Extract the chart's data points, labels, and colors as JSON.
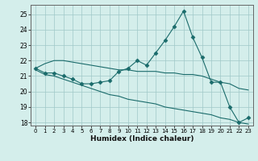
{
  "xlabel": "Humidex (Indice chaleur)",
  "background_color": "#d4eeeb",
  "grid_color": "#a0c8c8",
  "line_color": "#1a6b6b",
  "xlim": [
    -0.5,
    23.5
  ],
  "ylim": [
    17.8,
    25.6
  ],
  "yticks": [
    18,
    19,
    20,
    21,
    22,
    23,
    24,
    25
  ],
  "xticks": [
    0,
    1,
    2,
    3,
    4,
    5,
    6,
    7,
    8,
    9,
    10,
    11,
    12,
    13,
    14,
    15,
    16,
    17,
    18,
    19,
    20,
    21,
    22,
    23
  ],
  "series": [
    {
      "x": [
        0,
        1,
        2,
        3,
        4,
        5,
        6,
        7,
        8,
        9,
        10,
        11,
        12,
        13,
        14,
        15,
        16,
        17,
        18,
        19,
        20,
        21,
        22,
        23
      ],
      "y": [
        21.5,
        21.2,
        21.2,
        21.0,
        20.8,
        20.5,
        20.5,
        20.6,
        20.7,
        21.3,
        21.5,
        22.0,
        21.7,
        22.5,
        23.3,
        24.2,
        25.2,
        23.5,
        22.2,
        20.6,
        20.6,
        19.0,
        18.0,
        18.3
      ],
      "marker": "D",
      "markersize": 2.5
    },
    {
      "x": [
        0,
        1,
        2,
        3,
        4,
        5,
        6,
        7,
        8,
        9,
        10,
        11,
        12,
        13,
        14,
        15,
        16,
        17,
        18,
        19,
        20,
        21,
        22,
        23
      ],
      "y": [
        21.5,
        21.8,
        22.0,
        22.0,
        21.9,
        21.8,
        21.7,
        21.6,
        21.5,
        21.4,
        21.4,
        21.3,
        21.3,
        21.3,
        21.2,
        21.2,
        21.1,
        21.1,
        21.0,
        20.8,
        20.6,
        20.5,
        20.2,
        20.1
      ],
      "marker": null,
      "markersize": 0
    },
    {
      "x": [
        0,
        1,
        2,
        3,
        4,
        5,
        6,
        7,
        8,
        9,
        10,
        11,
        12,
        13,
        14,
        15,
        16,
        17,
        18,
        19,
        20,
        21,
        22,
        23
      ],
      "y": [
        21.4,
        21.1,
        21.0,
        20.8,
        20.6,
        20.4,
        20.2,
        20.0,
        19.8,
        19.7,
        19.5,
        19.4,
        19.3,
        19.2,
        19.0,
        18.9,
        18.8,
        18.7,
        18.6,
        18.5,
        18.3,
        18.2,
        18.0,
        17.9
      ],
      "marker": null,
      "markersize": 0
    }
  ]
}
